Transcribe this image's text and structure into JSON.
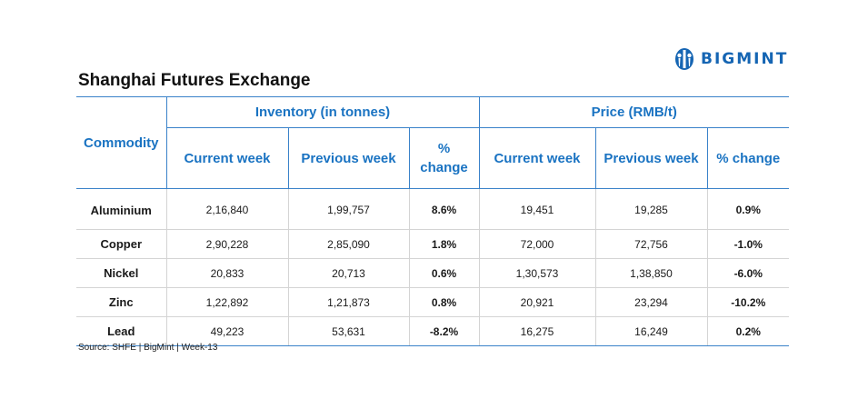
{
  "brand": {
    "name": "BIGMINT",
    "color": "#1565b3",
    "logo_icon": "bigmint-logo-icon"
  },
  "title": "Shanghai Futures Exchange",
  "table": {
    "commodity_header": "Commodity",
    "groups": {
      "inventory": "Inventory (in tonnes)",
      "price": "Price (RMB/t)"
    },
    "inventory_cols": {
      "current": "Current week",
      "previous": "Previous week",
      "change_line1": "%",
      "change_line2": "change"
    },
    "price_cols": {
      "current": "Current week",
      "previous": "Previous week",
      "change": "% change"
    },
    "rows": [
      {
        "commodity": "Aluminium",
        "inv_current": "2,16,840",
        "inv_previous": "1,99,757",
        "inv_change": "8.6%",
        "price_current": "19,451",
        "price_previous": "19,285",
        "price_change": "0.9%"
      },
      {
        "commodity": "Copper",
        "inv_current": "2,90,228",
        "inv_previous": "2,85,090",
        "inv_change": "1.8%",
        "price_current": "72,000",
        "price_previous": "72,756",
        "price_change": "-1.0%"
      },
      {
        "commodity": "Nickel",
        "inv_current": "20,833",
        "inv_previous": "20,713",
        "inv_change": "0.6%",
        "price_current": "1,30,573",
        "price_previous": "1,38,850",
        "price_change": "-6.0%"
      },
      {
        "commodity": "Zinc",
        "inv_current": "1,22,892",
        "inv_previous": "1,21,873",
        "inv_change": "0.8%",
        "price_current": "20,921",
        "price_previous": "23,294",
        "price_change": "-10.2%"
      },
      {
        "commodity": "Lead",
        "inv_current": "49,223",
        "inv_previous": "53,631",
        "inv_change": "-8.2%",
        "price_current": "16,275",
        "price_previous": "16,249",
        "price_change": "0.2%"
      }
    ]
  },
  "colors": {
    "header_text": "#1a73c2",
    "border": "#3a82c9",
    "positive": "#2ca84a",
    "negative": "#e12020"
  },
  "source": "Source: SHFE | BigMint | Week-13"
}
